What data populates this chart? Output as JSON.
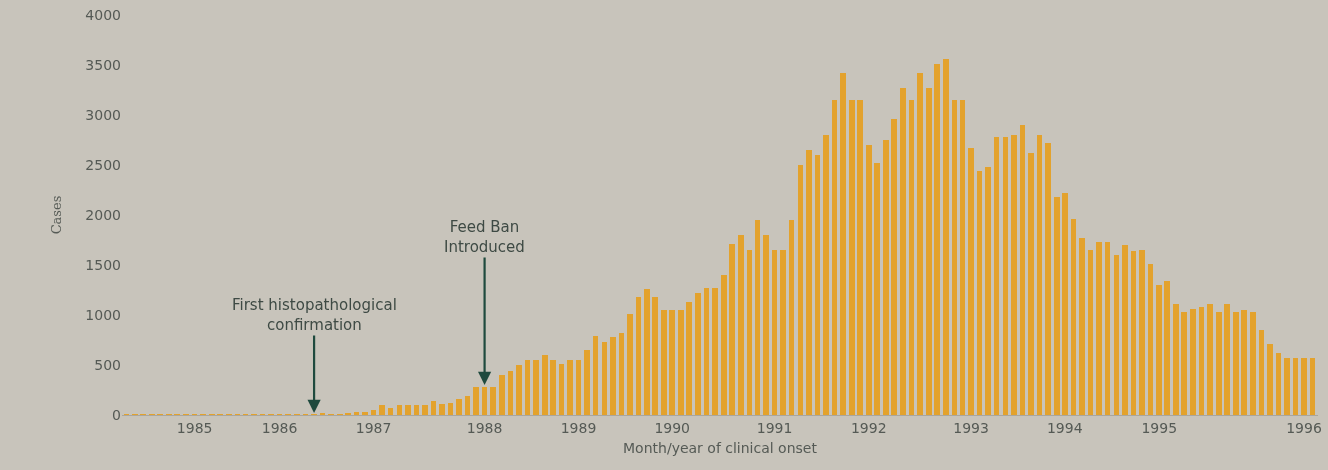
{
  "chart_data": {
    "type": "bar",
    "xlabel": "Month/year of clinical onset",
    "ylabel": "Cases",
    "x": [
      "1985-01",
      "1985-02",
      "1985-03",
      "1985-04",
      "1985-05",
      "1985-06",
      "1985-07",
      "1985-08",
      "1985-09",
      "1985-10",
      "1985-11",
      "1985-12",
      "1986-01",
      "1986-02",
      "1986-03",
      "1986-04",
      "1986-05",
      "1986-06",
      "1986-07",
      "1986-08",
      "1986-09",
      "1986-10",
      "1986-11",
      "1986-12",
      "1987-01",
      "1987-02",
      "1987-03",
      "1987-04",
      "1987-05",
      "1987-06",
      "1987-07",
      "1987-08",
      "1987-09",
      "1987-10",
      "1987-11",
      "1987-12",
      "1988-01",
      "1988-02",
      "1988-03",
      "1988-04",
      "1988-05",
      "1988-06",
      "1988-07",
      "1988-08",
      "1988-09",
      "1988-10",
      "1988-11",
      "1988-12",
      "1989-01",
      "1989-02",
      "1989-03",
      "1989-04",
      "1989-05",
      "1989-06",
      "1989-07",
      "1989-08",
      "1989-09",
      "1989-10",
      "1989-11",
      "1989-12",
      "1990-01",
      "1990-02",
      "1990-03",
      "1990-04",
      "1990-05",
      "1990-06",
      "1990-07",
      "1990-08",
      "1990-09",
      "1990-10",
      "1990-11",
      "1990-12",
      "1991-01",
      "1991-02",
      "1991-03",
      "1991-04",
      "1991-05",
      "1991-06",
      "1991-07",
      "1991-08",
      "1991-09",
      "1991-10",
      "1991-11",
      "1991-12",
      "1992-01",
      "1992-02",
      "1992-03",
      "1992-04",
      "1992-05",
      "1992-06",
      "1992-07",
      "1992-08",
      "1992-09",
      "1992-10",
      "1992-11",
      "1992-12",
      "1993-01",
      "1993-02",
      "1993-03",
      "1993-04",
      "1993-05",
      "1993-06",
      "1993-07",
      "1993-08",
      "1993-09",
      "1993-10",
      "1993-11",
      "1993-12",
      "1994-01",
      "1994-02",
      "1994-03",
      "1994-04",
      "1994-05",
      "1994-06",
      "1994-07",
      "1994-08",
      "1994-09",
      "1994-10",
      "1994-11",
      "1994-12",
      "1995-01",
      "1995-02",
      "1995-03",
      "1995-04",
      "1995-05",
      "1995-06",
      "1995-07",
      "1995-08",
      "1995-09",
      "1995-10",
      "1995-11",
      "1995-12",
      "1996-01",
      "1996-02",
      "1996-03",
      "1996-04",
      "1996-05",
      "1996-06",
      "1996-07",
      "1996-08"
    ],
    "values": [
      10,
      10,
      10,
      10,
      10,
      10,
      10,
      10,
      10,
      10,
      10,
      10,
      10,
      10,
      10,
      10,
      10,
      10,
      10,
      10,
      10,
      10,
      10,
      20,
      10,
      10,
      20,
      30,
      30,
      50,
      100,
      70,
      100,
      100,
      100,
      100,
      140,
      110,
      120,
      160,
      190,
      280,
      280,
      280,
      400,
      440,
      500,
      550,
      550,
      600,
      550,
      510,
      550,
      550,
      650,
      790,
      730,
      780,
      820,
      1010,
      1180,
      1260,
      1180,
      1050,
      1050,
      1050,
      1130,
      1220,
      1270,
      1270,
      1400,
      1710,
      1800,
      1650,
      1950,
      1800,
      1650,
      1650,
      1950,
      2500,
      2650,
      2600,
      2800,
      3150,
      3420,
      3150,
      3150,
      2700,
      2520,
      2750,
      2960,
      3270,
      3150,
      3420,
      3270,
      3510,
      3560,
      3150,
      3150,
      2670,
      2440,
      2480,
      2780,
      2780,
      2800,
      2900,
      2620,
      2800,
      2720,
      2180,
      2220,
      1960,
      1770,
      1650,
      1730,
      1730,
      1600,
      1700,
      1640,
      1650,
      1510,
      1300,
      1340,
      1110,
      1030,
      1060,
      1080,
      1110,
      1030,
      1110,
      1030,
      1050,
      1030,
      850,
      710,
      620,
      570,
      570,
      570,
      570
    ],
    "color": "#e3a22d",
    "xlim": [
      "1984-12-16",
      "1996-08-20"
    ],
    "xticks": [
      {
        "value": "1985-09",
        "label": "1985"
      },
      {
        "value": "1986-07",
        "label": "1986"
      },
      {
        "value": "1987-06",
        "label": "1987"
      },
      {
        "value": "1988-07",
        "label": "1988"
      },
      {
        "value": "1989-06",
        "label": "1989"
      },
      {
        "value": "1990-05",
        "label": "1990"
      },
      {
        "value": "1991-05",
        "label": "1991"
      },
      {
        "value": "1992-04",
        "label": "1992"
      },
      {
        "value": "1993-04",
        "label": "1993"
      },
      {
        "value": "1994-03",
        "label": "1994"
      },
      {
        "value": "1995-02",
        "label": "1995"
      },
      {
        "value": "1996-07",
        "label": "1996"
      }
    ],
    "ylim": [
      0,
      4000
    ],
    "yticks": [
      0,
      500,
      1000,
      1500,
      2000,
      2500,
      3000,
      3500,
      4000
    ],
    "annotations": [
      {
        "text": "First histopathological\nconfirmation",
        "x": "1986-11",
        "y": 0
      },
      {
        "text": "Feed Ban\nIntroduced",
        "x": "1988-07",
        "y": 280
      }
    ]
  }
}
